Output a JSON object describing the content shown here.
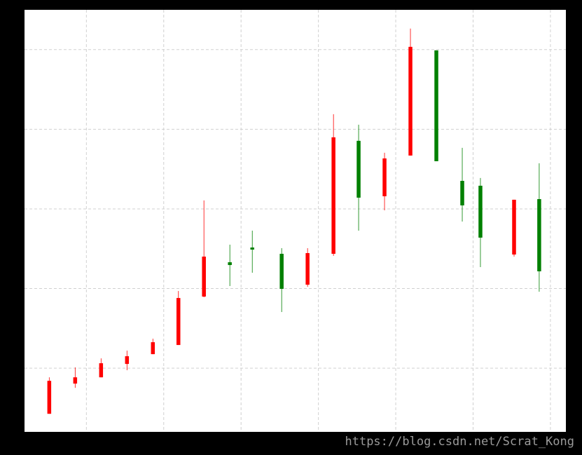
{
  "chart_data": {
    "type": "candlestick",
    "x": [
      5.2,
      8.55,
      11.9,
      15.25,
      18.6,
      21.9,
      25.2,
      28.55,
      31.45,
      35.25,
      38.6,
      41.95,
      45.2,
      48.55,
      51.9,
      55.25,
      58.6,
      60.95,
      65.3,
      68.55
    ],
    "open": [
      4.27,
      8.06,
      8.85,
      10.53,
      11.76,
      12.91,
      18.99,
      23.3,
      25.15,
      24.36,
      20.48,
      24.36,
      38.55,
      31.59,
      36.7,
      49.91,
      33.52,
      32.91,
      24.27,
      31.23
    ],
    "high": [
      8.85,
      10.09,
      11.23,
      12.2,
      13.7,
      19.69,
      31.06,
      25.51,
      27.27,
      25.07,
      25.07,
      41.89,
      40.57,
      37.05,
      52.64,
      49.91,
      37.67,
      33.88,
      31.15,
      35.73
    ],
    "low": [
      4.27,
      7.53,
      8.85,
      9.74,
      11.76,
      12.91,
      18.9,
      20.31,
      21.98,
      17.05,
      20.22,
      24.1,
      27.27,
      29.82,
      36.7,
      35.99,
      28.41,
      22.69,
      24.01,
      19.6
    ],
    "close": [
      8.41,
      8.85,
      10.62,
      11.5,
      13.26,
      18.81,
      24.01,
      22.95,
      24.89,
      19.96,
      24.45,
      38.99,
      31.41,
      36.34,
      50.35,
      35.99,
      30.44,
      26.39,
      31.15,
      22.16
    ],
    "up_color": "#ff0000",
    "down_color": "#008000",
    "xlim": [
      2,
      72
    ],
    "ylim": [
      2,
      55
    ],
    "xticks": [
      10,
      20,
      30,
      40,
      50,
      60,
      70
    ],
    "yticks": [
      10,
      20,
      30,
      40,
      50
    ],
    "grid": true
  },
  "watermark": "https://blog.csdn.net/Scrat_Kong"
}
